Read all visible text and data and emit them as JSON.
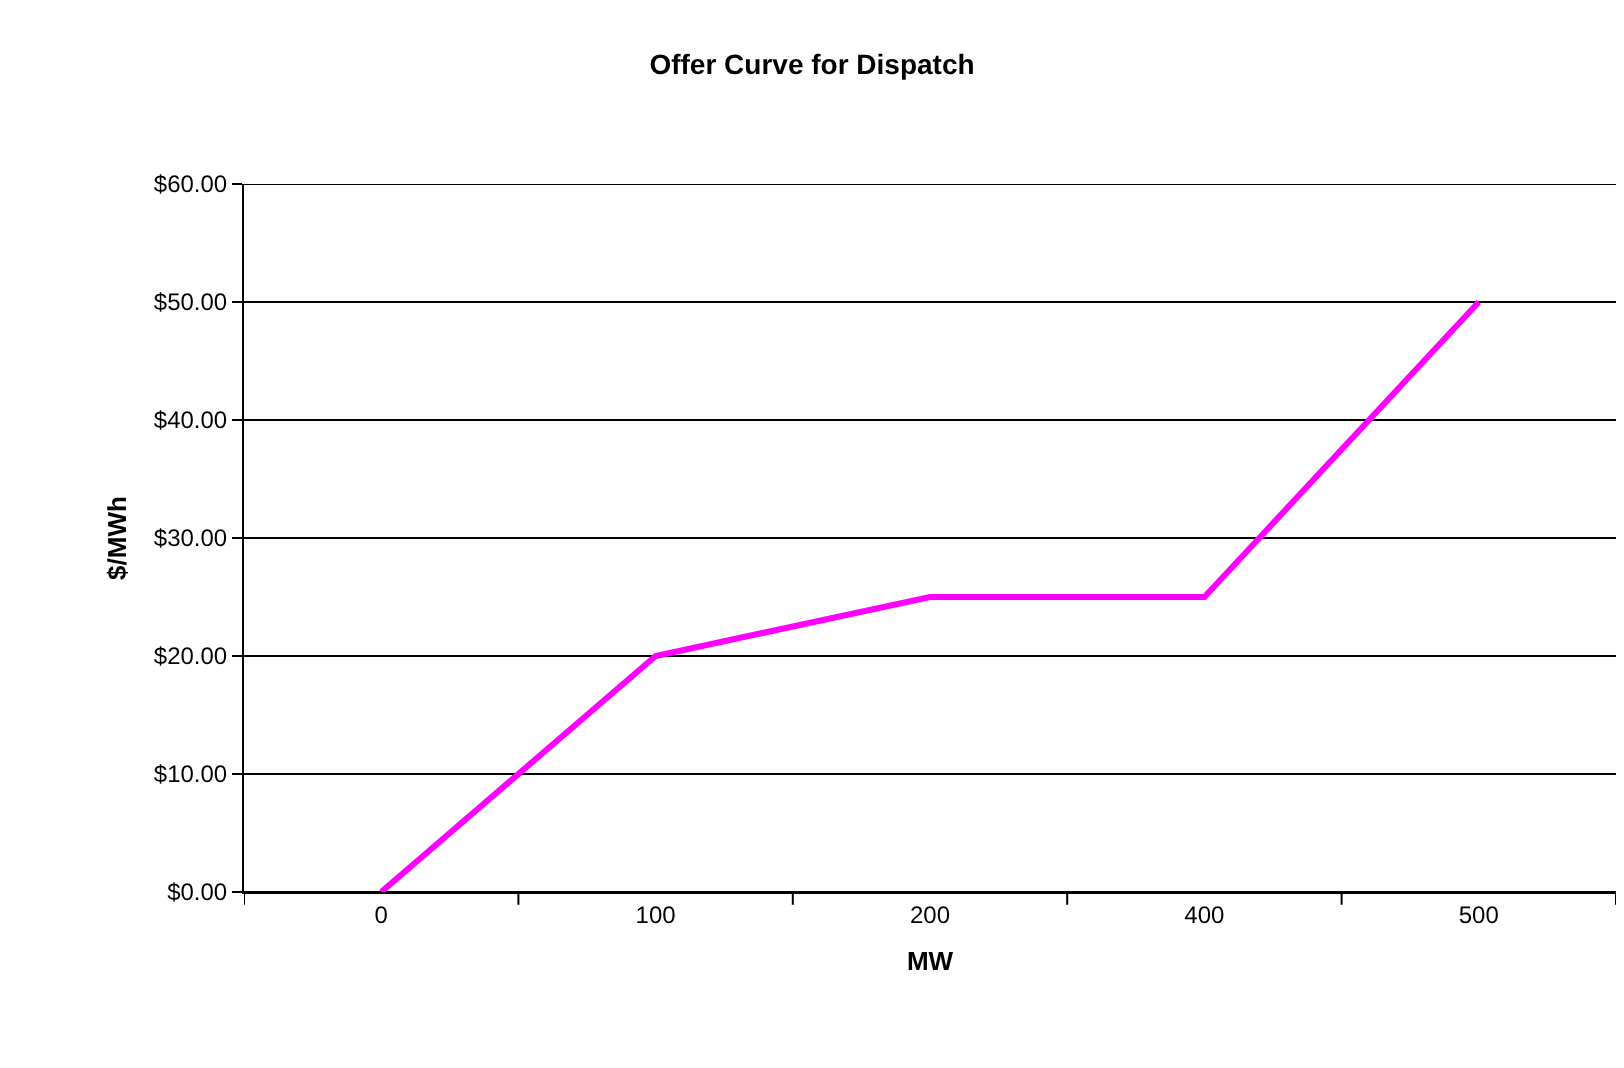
{
  "chart_data": {
    "type": "line",
    "title": "Offer Curve for Dispatch",
    "xlabel": "MW",
    "ylabel": "$/MWh",
    "categories": [
      "0",
      "100",
      "200",
      "400",
      "500"
    ],
    "series": [
      {
        "color": "#ff00ff",
        "values": [
          0,
          20,
          25,
          25,
          50
        ]
      }
    ],
    "ylim": [
      0,
      60
    ],
    "yticks": [
      {
        "value": 0,
        "label": "$0.00"
      },
      {
        "value": 10,
        "label": "$10.00"
      },
      {
        "value": 20,
        "label": "$20.00"
      },
      {
        "value": 30,
        "label": "$30.00"
      },
      {
        "value": 40,
        "label": "$40.00"
      },
      {
        "value": 50,
        "label": "$50.00"
      },
      {
        "value": 60,
        "label": "$60.00"
      }
    ],
    "grid": "y",
    "marker": "none",
    "line_style": "solid"
  }
}
